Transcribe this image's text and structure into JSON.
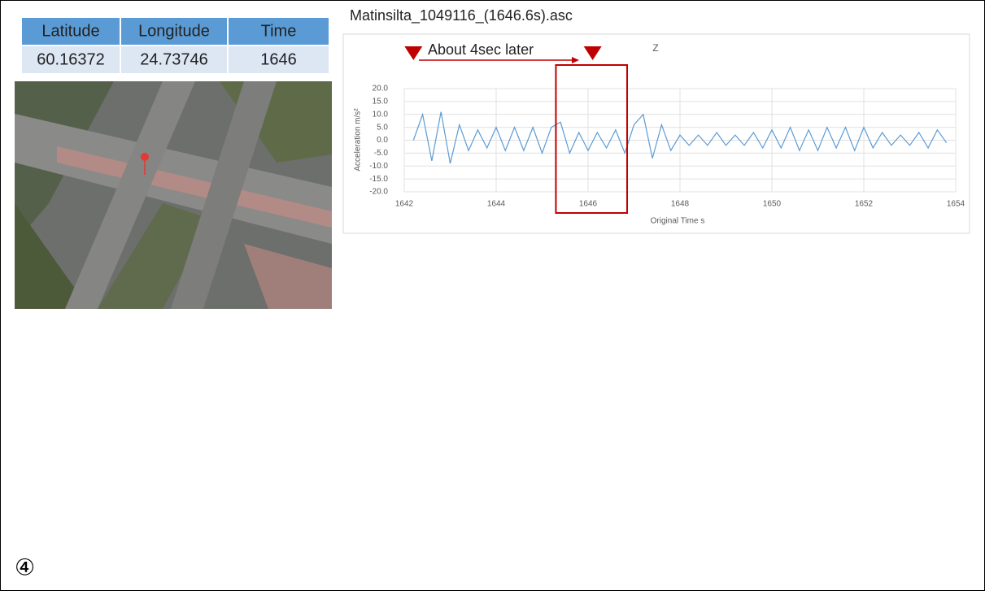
{
  "table": {
    "header": [
      "Latitude",
      "Longitude",
      "Time"
    ],
    "rows": [
      [
        "60.16372",
        "24.73746",
        "1646"
      ]
    ]
  },
  "file_title": "Matinsilta_1049116_(1646.6s).asc",
  "chart_data": {
    "type": "line",
    "title": "Z",
    "x_label": "Original Time s",
    "y_label": "Acceleration m/s²",
    "annotation": "About 4sec later",
    "highlight_x": [
      1645.3,
      1646.85
    ],
    "marker_x": [
      1642.2,
      1646.1
    ],
    "xlim": [
      1642,
      1654
    ],
    "xticks": [
      1642,
      1644,
      1646,
      1648,
      1650,
      1652,
      1654
    ],
    "ylim": [
      -20,
      20
    ],
    "yticks": [
      {
        "value": -20,
        "label": "-20.0"
      },
      {
        "value": -15,
        "label": "-15.0"
      },
      {
        "value": -10,
        "label": "-10.0"
      },
      {
        "value": -5,
        "label": "-5.0"
      },
      {
        "value": 0,
        "label": "0.0"
      },
      {
        "value": 5,
        "label": "5.0"
      },
      {
        "value": 10,
        "label": "10.0"
      },
      {
        "value": 15,
        "label": "15.0"
      },
      {
        "value": 20,
        "label": "20.0"
      }
    ],
    "grid": true,
    "x": [
      1642.2,
      1642.4,
      1642.6,
      1642.8,
      1643.0,
      1643.2,
      1643.4,
      1643.6,
      1643.8,
      1644.0,
      1644.2,
      1644.4,
      1644.6,
      1644.8,
      1645.0,
      1645.2,
      1645.4,
      1645.6,
      1645.8,
      1646.0,
      1646.2,
      1646.4,
      1646.6,
      1646.8,
      1647.0,
      1647.2,
      1647.4,
      1647.6,
      1647.8,
      1648.0,
      1648.2,
      1648.4,
      1648.6,
      1648.8,
      1649.0,
      1649.2,
      1649.4,
      1649.6,
      1649.8,
      1650.0,
      1650.2,
      1650.4,
      1650.6,
      1650.8,
      1651.0,
      1651.2,
      1651.4,
      1651.6,
      1651.8,
      1652.0,
      1652.2,
      1652.4,
      1652.6,
      1652.8,
      1653.0,
      1653.2,
      1653.4,
      1653.6,
      1653.8
    ],
    "series": [
      {
        "name": "Z",
        "color": "#5b9bd5",
        "values": [
          0,
          10,
          -8,
          11,
          -9,
          6,
          -4,
          4,
          -3,
          5,
          -4,
          5,
          -4,
          5,
          -5,
          5,
          7,
          -5,
          3,
          -4,
          3,
          -3,
          4,
          -5,
          6,
          10,
          -7,
          6,
          -4,
          2,
          -2,
          2,
          -2,
          3,
          -2,
          2,
          -2,
          3,
          -3,
          4,
          -3,
          5,
          -4,
          4,
          -4,
          5,
          -3,
          5,
          -4,
          5,
          -3,
          3,
          -2,
          2,
          -2,
          3,
          -3,
          4,
          -1
        ]
      }
    ]
  },
  "footer_mark": "④"
}
